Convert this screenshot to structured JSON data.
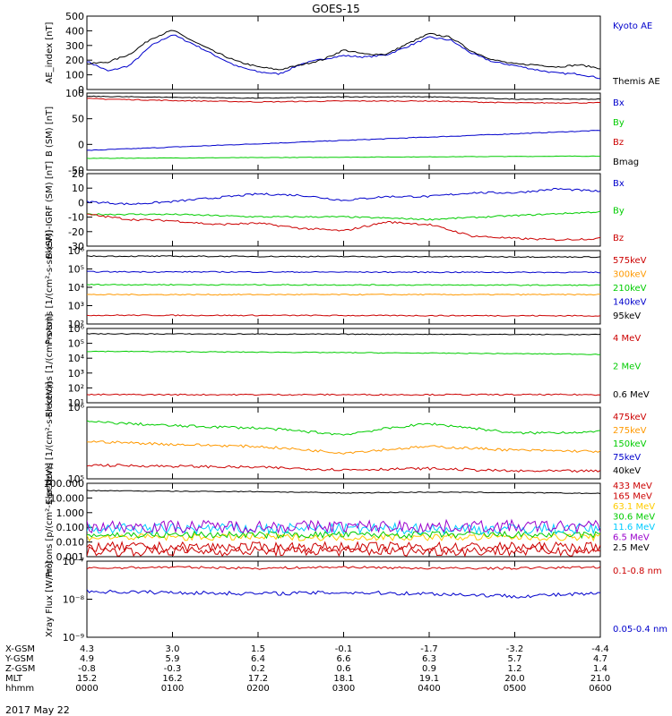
{
  "title": "GOES-15",
  "date": "2017 May 22",
  "orbit_rows": [
    {
      "label": "X-GSM",
      "values": [
        "4.3",
        "3.0",
        "1.5",
        "-0.1",
        "-1.7",
        "-3.2",
        "-4.4"
      ]
    },
    {
      "label": "Y-GSM",
      "values": [
        "4.9",
        "5.9",
        "6.4",
        "6.6",
        "6.3",
        "5.7",
        "4.7"
      ]
    },
    {
      "label": "Z-GSM",
      "values": [
        "-0.8",
        "-0.3",
        "0.2",
        "0.6",
        "0.9",
        "1.2",
        "1.4"
      ]
    },
    {
      "label": "MLT",
      "values": [
        "15.2",
        "16.2",
        "17.2",
        "18.1",
        "19.1",
        "20.0",
        "21.0"
      ]
    },
    {
      "label": "hhmm",
      "values": [
        "0000",
        "0100",
        "0200",
        "0300",
        "0400",
        "0500",
        "0600"
      ]
    }
  ],
  "chart_data": [
    {
      "type": "line",
      "ylabel": "AE_index [nT]",
      "ylim": [
        0,
        520
      ],
      "yticks": [
        "500",
        "400",
        "300",
        "200",
        "100",
        "0"
      ],
      "series": [
        {
          "name": "Kyoto AE",
          "color": "#0000cc",
          "x_hours": [
            0,
            0.25,
            0.5,
            0.75,
            1.0,
            1.25,
            1.5,
            1.75,
            2.0,
            2.25,
            2.5,
            2.75,
            3.0,
            3.25,
            3.5,
            3.75,
            4.0,
            4.25,
            4.5,
            4.75,
            5.0,
            5.25,
            5.5,
            5.75,
            6.0
          ],
          "values": [
            200,
            130,
            170,
            310,
            390,
            320,
            240,
            165,
            125,
            110,
            180,
            215,
            240,
            230,
            245,
            305,
            370,
            350,
            255,
            195,
            170,
            140,
            115,
            110,
            80
          ]
        },
        {
          "name": "Themis AE",
          "color": "#000000",
          "x_hours": [
            0,
            0.25,
            0.5,
            0.75,
            1.0,
            1.25,
            1.5,
            1.75,
            2.0,
            2.25,
            2.5,
            2.75,
            3.0,
            3.25,
            3.5,
            3.75,
            4.0,
            4.25,
            4.5,
            4.75,
            5.0,
            5.25,
            5.5,
            5.75,
            6.0
          ],
          "values": [
            180,
            195,
            250,
            360,
            420,
            340,
            265,
            200,
            160,
            140,
            175,
            210,
            280,
            250,
            250,
            325,
            395,
            370,
            270,
            210,
            180,
            175,
            160,
            175,
            150
          ]
        }
      ]
    },
    {
      "type": "line",
      "ylabel": "B (SM) [nT]",
      "ylim": [
        -60,
        105
      ],
      "yticks": [
        "100",
        "50",
        "0",
        "-50"
      ],
      "series": [
        {
          "name": "Bx",
          "color": "#0000cc",
          "x_hours": [
            0,
            6
          ],
          "values": [
            -18,
            25
          ]
        },
        {
          "name": "By",
          "color": "#00cc00",
          "x_hours": [
            0,
            6
          ],
          "values": [
            -35,
            -30
          ]
        },
        {
          "name": "Bz",
          "color": "#cc0000",
          "x_hours": [
            0,
            1,
            2,
            3,
            4,
            5,
            6
          ],
          "values": [
            93,
            89,
            86,
            88,
            88,
            84,
            84
          ]
        },
        {
          "name": "Bmag",
          "color": "#000000",
          "x_hours": [
            0,
            1,
            2,
            3,
            4,
            5,
            6
          ],
          "values": [
            98,
            96,
            94,
            97,
            97,
            92,
            92
          ]
        }
      ]
    },
    {
      "type": "line",
      "ylabel": "B (SM)-IGRF (SM) [nT]",
      "ylim": [
        -35,
        22
      ],
      "yticks": [
        "20",
        "10",
        "0",
        "-10",
        "-20",
        "-30"
      ],
      "series": [
        {
          "name": "Bx",
          "color": "#0000cc",
          "x_hours": [
            0,
            0.5,
            1.0,
            1.5,
            2.0,
            2.5,
            3.0,
            3.5,
            4.0,
            4.5,
            5.0,
            5.5,
            6.0
          ],
          "values": [
            0,
            -2,
            0,
            3,
            6,
            5,
            1,
            4,
            4,
            7,
            7,
            10,
            8
          ]
        },
        {
          "name": "By",
          "color": "#00cc00",
          "x_hours": [
            0,
            1.0,
            2.0,
            3.0,
            4.0,
            5.0,
            6.0
          ],
          "values": [
            -10,
            -10,
            -12,
            -12,
            -14,
            -11,
            -8
          ]
        },
        {
          "name": "Bz",
          "color": "#cc0000",
          "x_hours": [
            0,
            0.5,
            1.0,
            1.5,
            2.0,
            2.5,
            3.0,
            3.5,
            4.0,
            4.5,
            5.0,
            5.5,
            6.0
          ],
          "values": [
            -10,
            -14,
            -15,
            -18,
            -17,
            -21,
            -23,
            -16,
            -18,
            -27,
            -29,
            -30,
            -29
          ]
        }
      ]
    },
    {
      "type": "line",
      "ylabel": "Protons [1/(cm²-s-sr-keV)]",
      "yscale": "log",
      "ylim": [
        100,
        1000000
      ],
      "yticks": [
        "10⁶",
        "10⁵",
        "10⁴",
        "10³",
        "10²"
      ],
      "series": [
        {
          "name": "575keV",
          "color": "#cc0000",
          "x_hours": [
            0,
            6
          ],
          "values": [
            300,
            280
          ]
        },
        {
          "name": "300keV",
          "color": "#ff9900",
          "x_hours": [
            0,
            6
          ],
          "values": [
            4000,
            4000
          ]
        },
        {
          "name": "210keV",
          "color": "#00cc00",
          "x_hours": [
            0,
            6
          ],
          "values": [
            14000,
            13000
          ]
        },
        {
          "name": "140keV",
          "color": "#0000cc",
          "x_hours": [
            0,
            6
          ],
          "values": [
            70000,
            65000
          ]
        },
        {
          "name": "95keV",
          "color": "#000000",
          "x_hours": [
            0,
            6
          ],
          "values": [
            500000,
            450000
          ]
        }
      ]
    },
    {
      "type": "line",
      "ylabel": "Electrons [1/(cm²-s-sr)]",
      "yscale": "log",
      "ylim": [
        3,
        1000000
      ],
      "yticks": [
        "10⁶",
        "10⁵",
        "10⁴",
        "10³",
        "10²",
        "10¹"
      ],
      "series": [
        {
          "name": "4 MeV",
          "color": "#cc0000",
          "x_hours": [
            0,
            6
          ],
          "values": [
            12,
            12
          ]
        },
        {
          "name": "2 MeV",
          "color": "#00cc00",
          "x_hours": [
            0,
            6
          ],
          "values": [
            20000,
            12000
          ]
        },
        {
          "name": "0.6 MeV",
          "color": "#000000",
          "x_hours": [
            0,
            6
          ],
          "values": [
            400000,
            350000
          ]
        }
      ]
    },
    {
      "type": "line",
      "ylabel": "Electrons [1/(cm²-s-sr-keV)]",
      "yscale": "log",
      "ylim": [
        80000,
        1000000
      ],
      "yticks": [
        "10⁶",
        "10⁵"
      ],
      "series": [
        {
          "name": "475keV",
          "color": "#cc0000",
          "x_hours": [
            0,
            1,
            2,
            3,
            4,
            5,
            6
          ],
          "values": [
            130000,
            125000,
            120000,
            110000,
            115000,
            105000,
            105000
          ]
        },
        {
          "name": "275keV",
          "color": "#ff9900",
          "x_hours": [
            0,
            1,
            2,
            3,
            4,
            5,
            6
          ],
          "values": [
            300000,
            270000,
            250000,
            200000,
            250000,
            220000,
            210000
          ]
        },
        {
          "name": "150keV",
          "color": "#00cc00",
          "x_hours": [
            0,
            1,
            2,
            3,
            4,
            5,
            6
          ],
          "values": [
            600000,
            520000,
            480000,
            380000,
            560000,
            400000,
            420000
          ]
        },
        {
          "name": "75keV",
          "color": "#0000cc"
        },
        {
          "name": "40keV",
          "color": "#000000"
        }
      ]
    },
    {
      "type": "line",
      "ylabel": "Protons [p/(cm²-s-sr-keV)]",
      "yscale": "log",
      "ylim": [
        0.0008,
        150
      ],
      "yticks": [
        "100.000",
        "10.000",
        "1.000",
        "0.100",
        "0.010",
        "0.001"
      ],
      "series": [
        {
          "name": "433 MeV",
          "color": "#cc0000",
          "x_hours": [
            0,
            6
          ],
          "values": [
            0.004,
            0.004
          ]
        },
        {
          "name": "165 MeV",
          "color": "#cc0000",
          "x_hours": [
            0,
            6
          ],
          "values": [
            0.002,
            0.002
          ]
        },
        {
          "name": "63.1 MeV",
          "color": "#ffcc00",
          "x_hours": [
            0,
            6
          ],
          "values": [
            0.02,
            0.02
          ]
        },
        {
          "name": "30.6 MeV",
          "color": "#00cc00",
          "x_hours": [
            0,
            6
          ],
          "values": [
            0.03,
            0.03
          ]
        },
        {
          "name": "11.6 MeV",
          "color": "#00ccff",
          "x_hours": [
            0,
            6
          ],
          "values": [
            0.08,
            0.08
          ]
        },
        {
          "name": "6.5 MeV",
          "color": "#9900cc",
          "x_hours": [
            0,
            6
          ],
          "values": [
            0.12,
            0.12
          ]
        },
        {
          "name": "2.5 MeV",
          "color": "#000000",
          "x_hours": [
            0,
            1,
            2,
            3,
            4,
            5,
            6
          ],
          "values": [
            45,
            40,
            38,
            30,
            35,
            32,
            28
          ]
        }
      ]
    },
    {
      "type": "line",
      "ylabel": "Xray Flux [W/m²]",
      "yscale": "log",
      "ylim": [
        1e-09,
        1e-07
      ],
      "yticks": [
        "10⁻⁷",
        "10⁻⁸",
        "10⁻⁹"
      ],
      "series": [
        {
          "name": "0.1-0.8 nm",
          "color": "#cc0000",
          "x_hours": [
            0,
            1,
            2,
            3,
            4,
            5,
            6
          ],
          "values": [
            6.5e-08,
            7e-08,
            6.5e-08,
            7e-08,
            6.5e-08,
            6.5e-08,
            7e-08
          ]
        },
        {
          "name": "0.05-0.4 nm",
          "color": "#0000cc",
          "x_hours": [
            0,
            1,
            2,
            3,
            4,
            5,
            6
          ],
          "values": [
            1.6e-08,
            1.5e-08,
            1.4e-08,
            1.5e-08,
            1.4e-08,
            1.2e-08,
            1.4e-08
          ]
        }
      ]
    }
  ]
}
